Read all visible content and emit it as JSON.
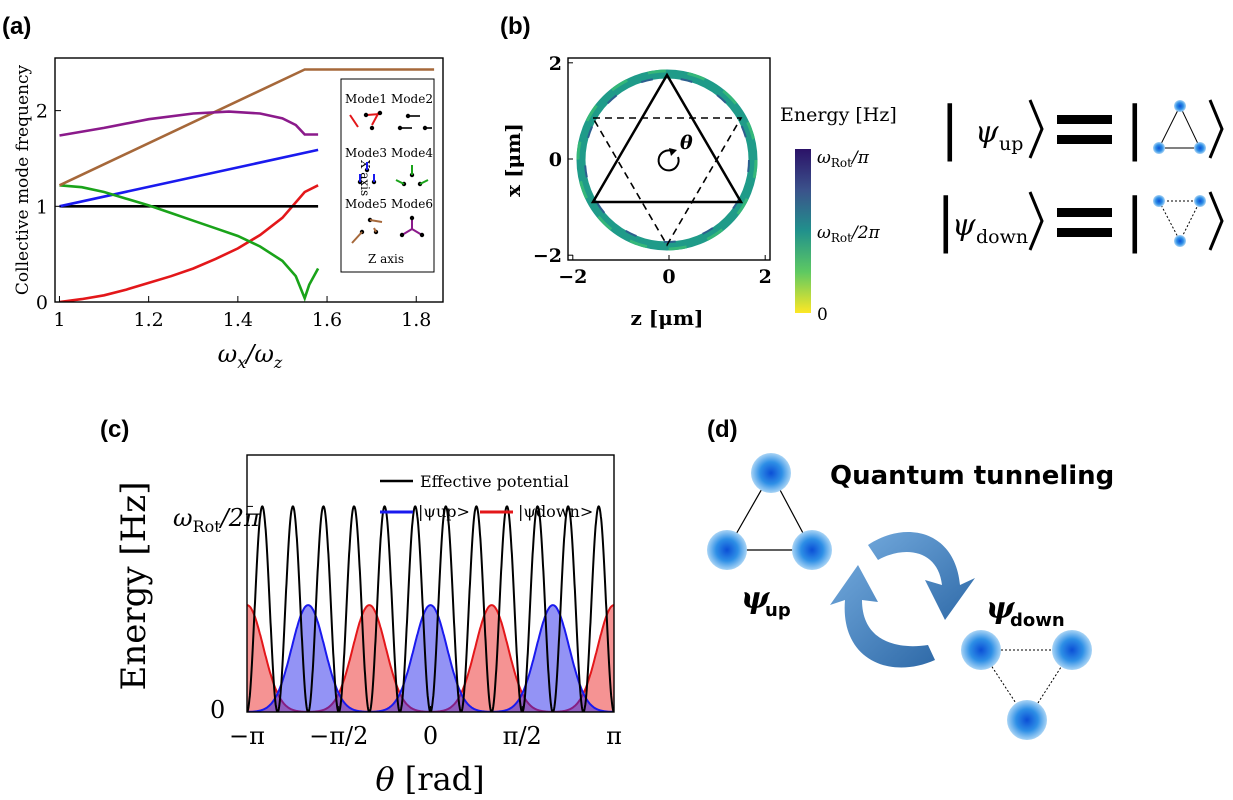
{
  "panel_labels": {
    "a": "(a)",
    "b": "(b)",
    "c": "(c)",
    "d": "(d)"
  },
  "chart_data": [
    {
      "type": "line",
      "panel": "(a)",
      "title": "",
      "xlabel": "ωx/ωz",
      "ylabel": "Collective mode frequency",
      "xlim": [
        0.99,
        1.86
      ],
      "ylim": [
        0,
        2.55
      ],
      "xticks": [
        "1",
        "1.2",
        "1.4",
        "1.6",
        "1.8"
      ],
      "yticks": [
        "0",
        "1",
        "2"
      ],
      "series": [
        {
          "name": "Mode1",
          "color": "#e3171a",
          "x": [
            1.0,
            1.05,
            1.1,
            1.15,
            1.2,
            1.25,
            1.3,
            1.35,
            1.4,
            1.45,
            1.5,
            1.55,
            1.58
          ],
          "y": [
            0.0,
            0.03,
            0.07,
            0.13,
            0.2,
            0.27,
            0.35,
            0.45,
            0.56,
            0.7,
            0.88,
            1.15,
            1.22
          ]
        },
        {
          "name": "Mode2",
          "color": "#000000",
          "x": [
            1.0,
            1.58
          ],
          "y": [
            1.0,
            1.0
          ]
        },
        {
          "name": "Mode3",
          "color": "#1a1aee",
          "x": [
            1.0,
            1.58
          ],
          "y": [
            1.0,
            1.59
          ]
        },
        {
          "name": "Mode4",
          "color": "#1aa31a",
          "x": [
            1.0,
            1.05,
            1.1,
            1.15,
            1.2,
            1.25,
            1.3,
            1.35,
            1.4,
            1.45,
            1.5,
            1.53,
            1.55,
            1.56,
            1.58
          ],
          "y": [
            1.22,
            1.2,
            1.15,
            1.08,
            1.01,
            0.93,
            0.85,
            0.77,
            0.69,
            0.58,
            0.43,
            0.27,
            0.04,
            0.18,
            0.35
          ]
        },
        {
          "name": "Mode5",
          "color": "#a6683a",
          "x": [
            1.0,
            1.55,
            1.84
          ],
          "y": [
            1.22,
            2.43,
            2.43
          ]
        },
        {
          "name": "Mode6",
          "color": "#8b1a8b",
          "x": [
            1.0,
            1.1,
            1.2,
            1.3,
            1.38,
            1.45,
            1.5,
            1.53,
            1.55,
            1.58
          ],
          "y": [
            1.74,
            1.82,
            1.91,
            1.97,
            1.99,
            1.97,
            1.92,
            1.85,
            1.75,
            1.75
          ]
        }
      ],
      "inset": {
        "modes": [
          "Mode1",
          "Mode2",
          "Mode3",
          "Mode4",
          "Mode5",
          "Mode6"
        ],
        "side_label": "X axis",
        "bottom_label": "Z axis"
      }
    },
    {
      "type": "heatmap",
      "panel": "(b)",
      "xlabel": "z [μm]",
      "ylabel": "x [μm]",
      "xlim": [
        -2.1,
        2.1
      ],
      "ylim": [
        -2.1,
        2.1
      ],
      "xticks": [
        "−2",
        "0",
        "2"
      ],
      "yticks": [
        "2",
        "0",
        "−2"
      ],
      "ring_radius": 1.7,
      "theta_label": "θ",
      "colorbar": {
        "title": "Energy [Hz]",
        "ticks": [
          "ωRot/π",
          "ωRot/2π",
          "0"
        ],
        "colors": [
          "#fde725",
          "#35b779",
          "#21918c",
          "#31688e",
          "#440154"
        ]
      }
    },
    {
      "type": "area",
      "panel": "(c)",
      "xlabel": "θ [rad]",
      "ylabel": "Energy [Hz]",
      "xlim": [
        -3.1416,
        3.1416
      ],
      "ylim": [
        0,
        1.25
      ],
      "xticks": [
        "−π",
        "−π/2",
        "0",
        "π/2",
        "π"
      ],
      "yticks": [
        "0",
        "ωRot/2π"
      ],
      "legend": "top-right",
      "series": [
        {
          "name": "Effective potential",
          "color": "#000000",
          "formula": "0.5*(1-cos(12θ))",
          "peak": 1.0
        },
        {
          "name": "|ψup>",
          "color": "#1a1aee",
          "centers": [
            -2.0944,
            0,
            2.0944
          ],
          "peak": 0.52
        },
        {
          "name": "|ψdown>",
          "color": "#e3171a",
          "centers": [
            -3.1416,
            -1.0472,
            1.0472,
            3.1416
          ],
          "peak": 0.52
        }
      ]
    }
  ],
  "states": {
    "psi_up": "ψ",
    "psi_up_sub": "up",
    "psi_down": "ψ",
    "psi_down_sub": "down"
  },
  "panel_d": {
    "title": "Quantum tunneling",
    "up_label": "ψ",
    "up_sub": "up",
    "down_label": "ψ",
    "down_sub": "down"
  }
}
